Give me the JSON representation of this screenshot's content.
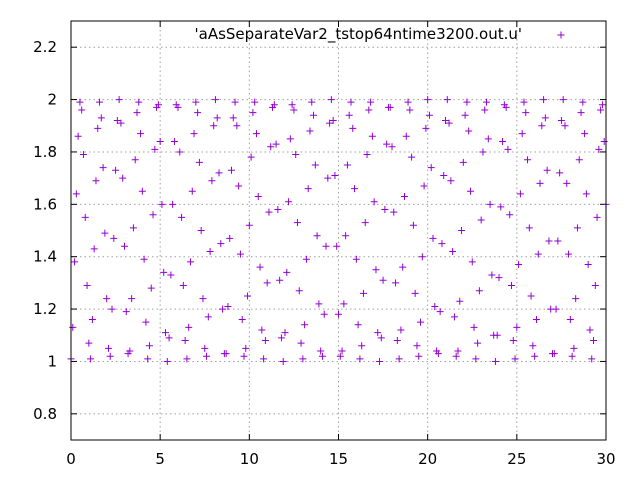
{
  "chart_data": {
    "type": "scatter",
    "title": "",
    "xlabel": "",
    "ylabel": "",
    "xlim": [
      0,
      30
    ],
    "ylim": [
      0.7,
      2.3
    ],
    "xticks": [
      0,
      5,
      10,
      15,
      20,
      25,
      30
    ],
    "yticks": [
      0.8,
      1,
      1.2,
      1.4,
      1.6,
      1.8,
      2,
      2.2
    ],
    "xtick_labels": [
      "0",
      "5",
      "10",
      "15",
      "20",
      "25",
      "30"
    ],
    "ytick_labels": [
      "0.8",
      "1",
      "1.2",
      "1.4",
      "1.6",
      "1.8",
      "2",
      "2.2"
    ],
    "grid": true,
    "legend_position": "top-right",
    "marker": "plus",
    "series": [
      {
        "name": "'aAsSeparateVar2_tstop64ntime3200.out.u'",
        "color": "#9400d3",
        "x": [
          0.0,
          0.1,
          0.2,
          0.3,
          0.4,
          0.5,
          0.6,
          0.7,
          0.8,
          0.9,
          1.0,
          1.1,
          1.2,
          1.3,
          1.4,
          1.5,
          1.6,
          1.7,
          1.8,
          1.9,
          2.0,
          2.1,
          2.2,
          2.3,
          2.4,
          2.5,
          2.6,
          2.7,
          2.8,
          2.9,
          3.0,
          3.1,
          3.2,
          3.3,
          3.4,
          3.5,
          3.6,
          3.7,
          3.8,
          3.9,
          4.0,
          4.1,
          4.2,
          4.3,
          4.4,
          4.5,
          4.6,
          4.7,
          4.8,
          4.9,
          5.0,
          5.1,
          5.2,
          5.3,
          5.4,
          5.5,
          5.6,
          5.7,
          5.8,
          5.9,
          6.0,
          6.1,
          6.2,
          6.3,
          6.4,
          6.5,
          6.6,
          6.7,
          6.8,
          6.9,
          7.0,
          7.1,
          7.2,
          7.3,
          7.4,
          7.5,
          7.6,
          7.7,
          7.8,
          7.9,
          8.0,
          8.1,
          8.2,
          8.3,
          8.4,
          8.5,
          8.6,
          8.7,
          8.8,
          8.9,
          9.0,
          9.1,
          9.2,
          9.3,
          9.4,
          9.5,
          9.6,
          9.7,
          9.8,
          9.9,
          10.0,
          10.1,
          10.2,
          10.3,
          10.4,
          10.5,
          10.6,
          10.7,
          10.8,
          10.9,
          11.0,
          11.1,
          11.2,
          11.3,
          11.4,
          11.5,
          11.6,
          11.7,
          11.8,
          11.9,
          12.0,
          12.1,
          12.2,
          12.3,
          12.4,
          12.5,
          12.6,
          12.7,
          12.8,
          12.9,
          13.0,
          13.1,
          13.2,
          13.3,
          13.4,
          13.5,
          13.6,
          13.7,
          13.8,
          13.9,
          14.0,
          14.1,
          14.2,
          14.3,
          14.4,
          14.5,
          14.6,
          14.7,
          14.8,
          14.9,
          15.0,
          15.1,
          15.2,
          15.3,
          15.4,
          15.5,
          15.6,
          15.7,
          15.8,
          15.9,
          16.0,
          16.1,
          16.2,
          16.3,
          16.4,
          16.5,
          16.6,
          16.7,
          16.8,
          16.9,
          17.0,
          17.1,
          17.2,
          17.3,
          17.4,
          17.5,
          17.6,
          17.7,
          17.8,
          17.9,
          18.0,
          18.1,
          18.2,
          18.3,
          18.4,
          18.5,
          18.6,
          18.7,
          18.8,
          18.9,
          19.0,
          19.1,
          19.2,
          19.3,
          19.4,
          19.5,
          19.6,
          19.7,
          19.8,
          19.9,
          20.0,
          20.1,
          20.2,
          20.3,
          20.4,
          20.5,
          20.6,
          20.7,
          20.8,
          20.9,
          21.0,
          21.1,
          21.2,
          21.3,
          21.4,
          21.5,
          21.6,
          21.7,
          21.8,
          21.9,
          22.0,
          22.1,
          22.2,
          22.3,
          22.4,
          22.5,
          22.6,
          22.7,
          22.8,
          22.9,
          23.0,
          23.1,
          23.2,
          23.3,
          23.4,
          23.5,
          23.6,
          23.7,
          23.8,
          23.9,
          24.0,
          24.1,
          24.2,
          24.3,
          24.4,
          24.5,
          24.6,
          24.7,
          24.8,
          24.9,
          25.0,
          25.1,
          25.2,
          25.3,
          25.4,
          25.5,
          25.6,
          25.7,
          25.8,
          25.9,
          26.0,
          26.1,
          26.2,
          26.3,
          26.4,
          26.5,
          26.6,
          26.7,
          26.8,
          26.9,
          27.0,
          27.1,
          27.2,
          27.3,
          27.4,
          27.5,
          27.6,
          27.7,
          27.8,
          27.9,
          28.0,
          28.1,
          28.2,
          28.3,
          28.4,
          28.5,
          28.6,
          28.7,
          28.8,
          28.9,
          29.0,
          29.1,
          29.2,
          29.3,
          29.4,
          29.5,
          29.6,
          29.7,
          29.8,
          29.9,
          30.0
        ],
        "y": [
          1.01,
          1.13,
          1.38,
          1.64,
          1.86,
          1.99,
          1.96,
          1.79,
          1.55,
          1.29,
          1.07,
          1.01,
          1.16,
          1.43,
          1.69,
          1.89,
          1.99,
          1.93,
          1.74,
          1.49,
          1.24,
          1.05,
          1.02,
          1.2,
          1.47,
          1.73,
          1.92,
          2.0,
          1.91,
          1.7,
          1.44,
          1.19,
          1.03,
          1.04,
          1.24,
          1.51,
          1.77,
          1.95,
          1.99,
          1.87,
          1.65,
          1.39,
          1.15,
          1.01,
          1.06,
          1.28,
          1.56,
          1.81,
          1.97,
          1.98,
          1.84,
          1.6,
          1.34,
          1.11,
          1.0,
          1.09,
          1.33,
          1.6,
          1.84,
          1.98,
          1.97,
          1.8,
          1.55,
          1.29,
          1.08,
          1.01,
          1.13,
          1.38,
          1.65,
          1.87,
          1.99,
          1.95,
          1.76,
          1.5,
          1.24,
          1.05,
          1.02,
          1.17,
          1.42,
          1.69,
          1.9,
          2.0,
          1.93,
          1.72,
          1.45,
          1.2,
          1.03,
          1.03,
          1.21,
          1.47,
          1.73,
          1.93,
          1.99,
          1.9,
          1.67,
          1.41,
          1.16,
          1.02,
          1.05,
          1.25,
          1.52,
          1.78,
          1.95,
          1.99,
          1.87,
          1.63,
          1.36,
          1.12,
          1.01,
          1.08,
          1.3,
          1.57,
          1.82,
          1.97,
          1.98,
          1.83,
          1.58,
          1.31,
          1.09,
          1.0,
          1.11,
          1.34,
          1.61,
          1.85,
          1.98,
          1.96,
          1.79,
          1.53,
          1.27,
          1.07,
          1.01,
          1.14,
          1.39,
          1.66,
          1.88,
          1.99,
          1.94,
          1.75,
          1.48,
          1.22,
          1.04,
          1.02,
          1.18,
          1.44,
          1.7,
          1.91,
          2.0,
          1.92,
          1.71,
          1.44,
          1.18,
          1.02,
          1.04,
          1.22,
          1.48,
          1.75,
          1.94,
          1.99,
          1.89,
          1.66,
          1.39,
          1.14,
          1.01,
          1.06,
          1.26,
          1.53,
          1.79,
          1.96,
          1.99,
          1.86,
          1.61,
          1.35,
          1.11,
          1.0,
          1.09,
          1.31,
          1.58,
          1.83,
          1.97,
          1.97,
          1.82,
          1.57,
          1.3,
          1.08,
          1.01,
          1.12,
          1.36,
          1.63,
          1.86,
          1.99,
          1.96,
          1.78,
          1.52,
          1.26,
          1.06,
          1.02,
          1.15,
          1.4,
          1.67,
          1.89,
          2.0,
          1.94,
          1.74,
          1.47,
          1.21,
          1.04,
          1.03,
          1.19,
          1.45,
          1.71,
          1.92,
          2.0,
          1.91,
          1.69,
          1.42,
          1.17,
          1.02,
          1.04,
          1.23,
          1.5,
          1.76,
          1.94,
          1.99,
          1.88,
          1.65,
          1.38,
          1.13,
          1.01,
          1.07,
          1.27,
          1.54,
          1.8,
          1.96,
          1.99,
          1.85,
          1.6,
          1.33,
          1.1,
          1.0,
          1.1,
          1.32,
          1.59,
          1.84,
          1.98,
          1.97,
          1.81,
          1.56,
          1.29,
          1.08,
          1.01,
          1.13,
          1.37,
          1.64,
          1.87,
          1.99,
          1.95,
          1.77,
          1.51,
          1.25,
          1.06,
          1.02,
          1.16,
          1.41,
          1.68,
          1.9,
          2.0,
          1.93,
          1.73,
          1.46,
          1.2,
          1.03,
          1.03,
          1.2,
          1.46,
          1.72,
          1.92,
          2.0,
          1.9,
          1.68,
          1.41,
          1.16,
          1.02,
          1.05,
          1.24,
          1.51,
          1.77,
          1.95,
          1.99,
          1.87,
          1.64,
          1.37,
          1.12,
          1.01,
          1.08,
          1.29,
          1.55,
          1.81,
          1.96,
          1.98,
          1.84,
          1.6
        ]
      }
    ]
  }
}
